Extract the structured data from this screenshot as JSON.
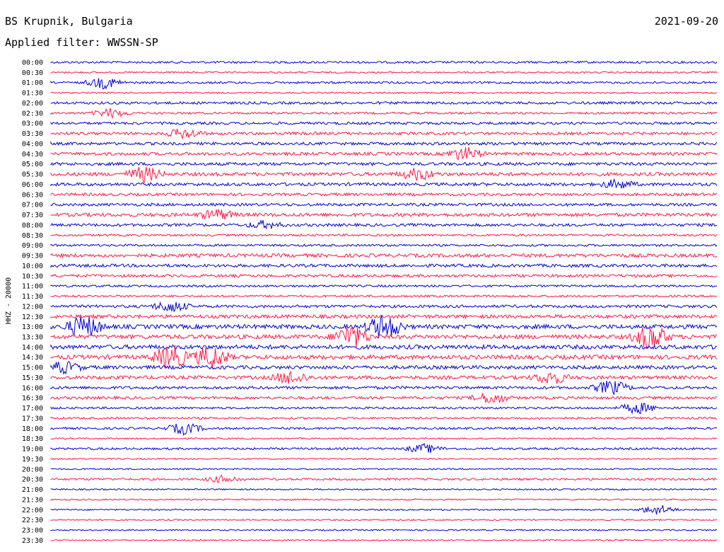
{
  "header": {
    "station": "BS Krupnik, Bulgaria",
    "date": "2021-09-20",
    "filter": "Applied filter: WWSSN-SP"
  },
  "chart_data": {
    "type": "line",
    "title": "BS Krupnik, Bulgaria",
    "ylabel": "HHZ - 20000",
    "colors": [
      "#0000cc",
      "#ff1744"
    ],
    "rows": [
      "00:00",
      "00:30",
      "01:00",
      "01:30",
      "02:00",
      "02:30",
      "03:00",
      "03:30",
      "04:00",
      "04:30",
      "05:00",
      "05:30",
      "06:00",
      "06:30",
      "07:00",
      "07:30",
      "08:00",
      "08:30",
      "09:00",
      "09:30",
      "10:00",
      "10:30",
      "11:00",
      "11:30",
      "12:00",
      "12:30",
      "13:00",
      "13:30",
      "14:00",
      "14:30",
      "15:00",
      "15:30",
      "16:00",
      "16:30",
      "17:00",
      "17:30",
      "18:00",
      "18:30",
      "19:00",
      "19:30",
      "20:00",
      "20:30",
      "21:00",
      "21:30",
      "22:00",
      "22:30",
      "23:00",
      "23:30"
    ],
    "noise_level": [
      1.5,
      1.2,
      1.5,
      1,
      1.8,
      1.5,
      1.8,
      2,
      2,
      2.2,
      2.2,
      2.5,
      2.2,
      2,
      2,
      2.5,
      2,
      1.5,
      1.5,
      2.5,
      2.2,
      2,
      1.5,
      1.5,
      2,
      2.5,
      3,
      3,
      3,
      3,
      2.5,
      2.5,
      2,
      2,
      1.5,
      1.5,
      1.5,
      1,
      1.5,
      1,
      1,
      1.5,
      1,
      1,
      1,
      1,
      1,
      1
    ],
    "events": [
      {
        "row": "01:00",
        "x": 0.08,
        "amp": 8
      },
      {
        "row": "02:30",
        "x": 0.09,
        "amp": 6
      },
      {
        "row": "03:30",
        "x": 0.2,
        "amp": 7
      },
      {
        "row": "04:30",
        "x": 0.62,
        "amp": 9
      },
      {
        "row": "05:30",
        "x": 0.14,
        "amp": 10
      },
      {
        "row": "05:30",
        "x": 0.55,
        "amp": 8
      },
      {
        "row": "06:00",
        "x": 0.85,
        "amp": 6
      },
      {
        "row": "07:30",
        "x": 0.25,
        "amp": 7
      },
      {
        "row": "08:00",
        "x": 0.32,
        "amp": 5
      },
      {
        "row": "12:00",
        "x": 0.18,
        "amp": 8
      },
      {
        "row": "13:00",
        "x": 0.05,
        "amp": 16
      },
      {
        "row": "13:00",
        "x": 0.5,
        "amp": 18
      },
      {
        "row": "13:30",
        "x": 0.45,
        "amp": 16
      },
      {
        "row": "13:30",
        "x": 0.9,
        "amp": 18
      },
      {
        "row": "14:30",
        "x": 0.18,
        "amp": 18
      },
      {
        "row": "14:30",
        "x": 0.24,
        "amp": 16
      },
      {
        "row": "15:00",
        "x": 0.02,
        "amp": 8
      },
      {
        "row": "15:30",
        "x": 0.36,
        "amp": 9
      },
      {
        "row": "15:30",
        "x": 0.75,
        "amp": 9
      },
      {
        "row": "16:00",
        "x": 0.84,
        "amp": 10
      },
      {
        "row": "16:30",
        "x": 0.66,
        "amp": 8
      },
      {
        "row": "17:00",
        "x": 0.88,
        "amp": 8
      },
      {
        "row": "18:00",
        "x": 0.2,
        "amp": 8
      },
      {
        "row": "19:00",
        "x": 0.56,
        "amp": 6
      },
      {
        "row": "20:30",
        "x": 0.26,
        "amp": 5
      },
      {
        "row": "22:00",
        "x": 0.91,
        "amp": 7
      }
    ]
  }
}
